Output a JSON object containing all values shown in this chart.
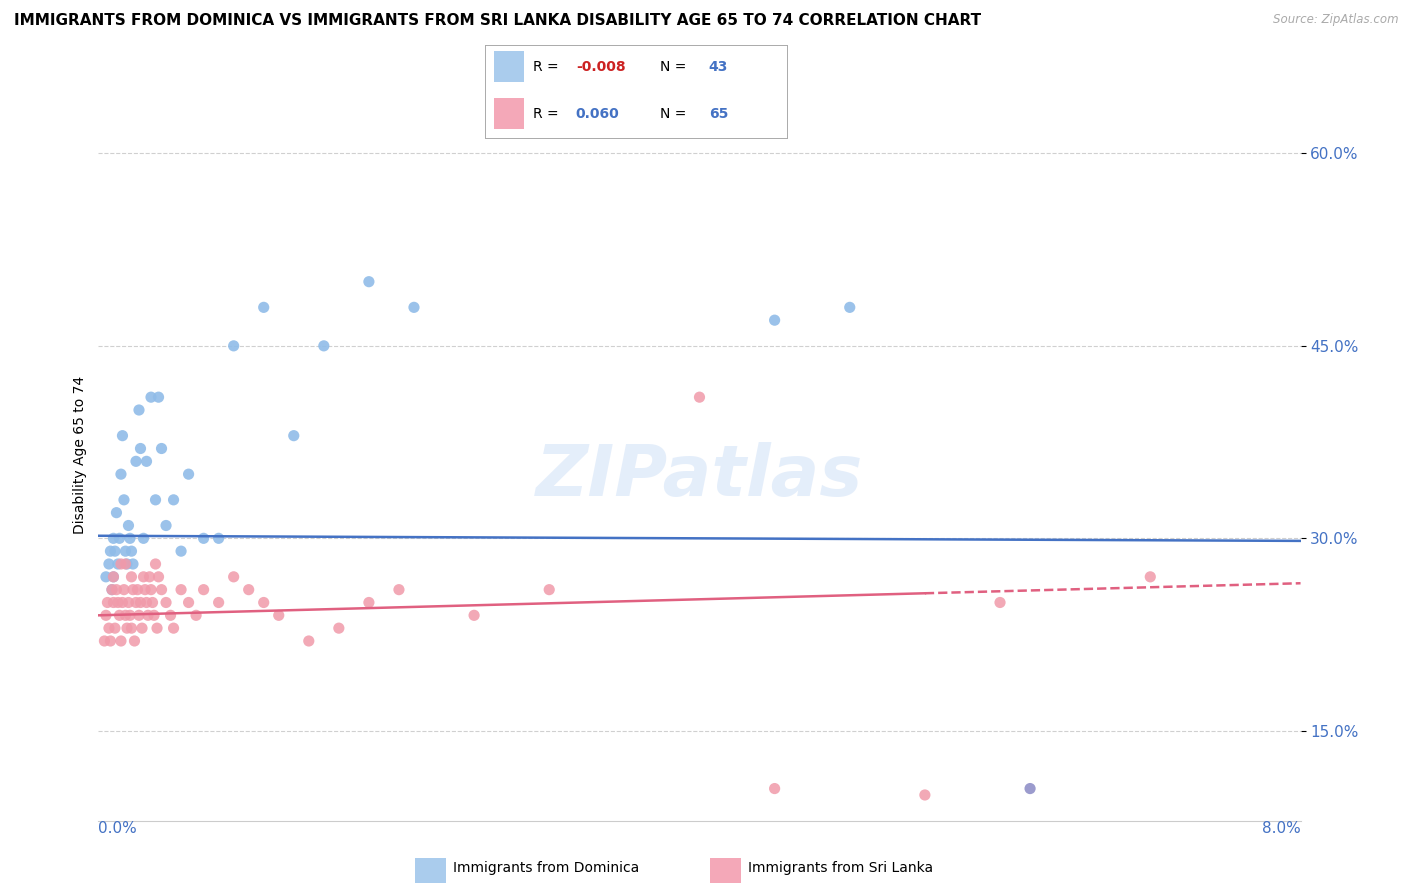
{
  "title": "IMMIGRANTS FROM DOMINICA VS IMMIGRANTS FROM SRI LANKA DISABILITY AGE 65 TO 74 CORRELATION CHART",
  "source": "Source: ZipAtlas.com",
  "ylabel": "Disability Age 65 to 74",
  "xlim": [
    0.0,
    8.0
  ],
  "ylim": [
    8.0,
    65.0
  ],
  "yticks": [
    15.0,
    30.0,
    45.0,
    60.0
  ],
  "watermark": "ZIPatlas",
  "legend_entries": [
    {
      "label": "Immigrants from Dominica",
      "R": "-0.008",
      "N": "43",
      "color": "#aacced"
    },
    {
      "label": "Immigrants from Sri Lanka",
      "R": "0.060",
      "N": "65",
      "color": "#f4a8b8"
    }
  ],
  "dominica_x": [
    0.05,
    0.07,
    0.08,
    0.09,
    0.1,
    0.1,
    0.11,
    0.12,
    0.13,
    0.14,
    0.15,
    0.16,
    0.17,
    0.18,
    0.19,
    0.2,
    0.21,
    0.22,
    0.23,
    0.25,
    0.27,
    0.28,
    0.3,
    0.32,
    0.35,
    0.38,
    0.4,
    0.42,
    0.45,
    0.5,
    0.55,
    0.6,
    0.7,
    0.8,
    0.9,
    1.1,
    1.3,
    1.5,
    1.8,
    2.1,
    4.5,
    5.0,
    6.2
  ],
  "dominica_y": [
    27.0,
    28.0,
    29.0,
    26.0,
    27.0,
    30.0,
    29.0,
    32.0,
    28.0,
    30.0,
    35.0,
    38.0,
    33.0,
    29.0,
    28.0,
    31.0,
    30.0,
    29.0,
    28.0,
    36.0,
    40.0,
    37.0,
    30.0,
    36.0,
    41.0,
    33.0,
    41.0,
    37.0,
    31.0,
    33.0,
    29.0,
    35.0,
    30.0,
    30.0,
    45.0,
    48.0,
    38.0,
    45.0,
    50.0,
    48.0,
    47.0,
    48.0,
    10.5
  ],
  "dominica_y_outlier_color": "#9090c8",
  "srilanka_x": [
    0.04,
    0.05,
    0.06,
    0.07,
    0.08,
    0.09,
    0.1,
    0.1,
    0.11,
    0.12,
    0.13,
    0.14,
    0.15,
    0.15,
    0.16,
    0.17,
    0.18,
    0.18,
    0.19,
    0.2,
    0.21,
    0.22,
    0.22,
    0.23,
    0.24,
    0.25,
    0.26,
    0.27,
    0.28,
    0.29,
    0.3,
    0.31,
    0.32,
    0.33,
    0.34,
    0.35,
    0.36,
    0.37,
    0.38,
    0.39,
    0.4,
    0.42,
    0.45,
    0.48,
    0.5,
    0.55,
    0.6,
    0.65,
    0.7,
    0.8,
    0.9,
    1.0,
    1.1,
    1.2,
    1.4,
    1.6,
    1.8,
    2.0,
    2.5,
    3.0,
    4.0,
    4.5,
    5.5,
    6.0,
    7.0
  ],
  "srilanka_y": [
    22.0,
    24.0,
    25.0,
    23.0,
    22.0,
    26.0,
    25.0,
    27.0,
    23.0,
    26.0,
    25.0,
    24.0,
    28.0,
    22.0,
    25.0,
    26.0,
    24.0,
    28.0,
    23.0,
    25.0,
    24.0,
    27.0,
    23.0,
    26.0,
    22.0,
    25.0,
    26.0,
    24.0,
    25.0,
    23.0,
    27.0,
    26.0,
    25.0,
    24.0,
    27.0,
    26.0,
    25.0,
    24.0,
    28.0,
    23.0,
    27.0,
    26.0,
    25.0,
    24.0,
    23.0,
    26.0,
    25.0,
    24.0,
    26.0,
    25.0,
    27.0,
    26.0,
    25.0,
    24.0,
    22.0,
    23.0,
    25.0,
    26.0,
    24.0,
    26.0,
    41.0,
    10.5,
    10.0,
    25.0,
    27.0
  ],
  "dot_color_dominica": "#90bce8",
  "dot_color_srilanka": "#f09aaa",
  "line_color_dominica": "#4472c4",
  "line_color_srilanka": "#e06080",
  "background_color": "#ffffff",
  "grid_color": "#d0d0d0",
  "title_fontsize": 11,
  "tick_label_color": "#4472c4",
  "dominica_trend_y0": 30.2,
  "dominica_trend_y1": 29.8,
  "srilanka_trend_y0": 24.0,
  "srilanka_trend_y1": 26.5
}
